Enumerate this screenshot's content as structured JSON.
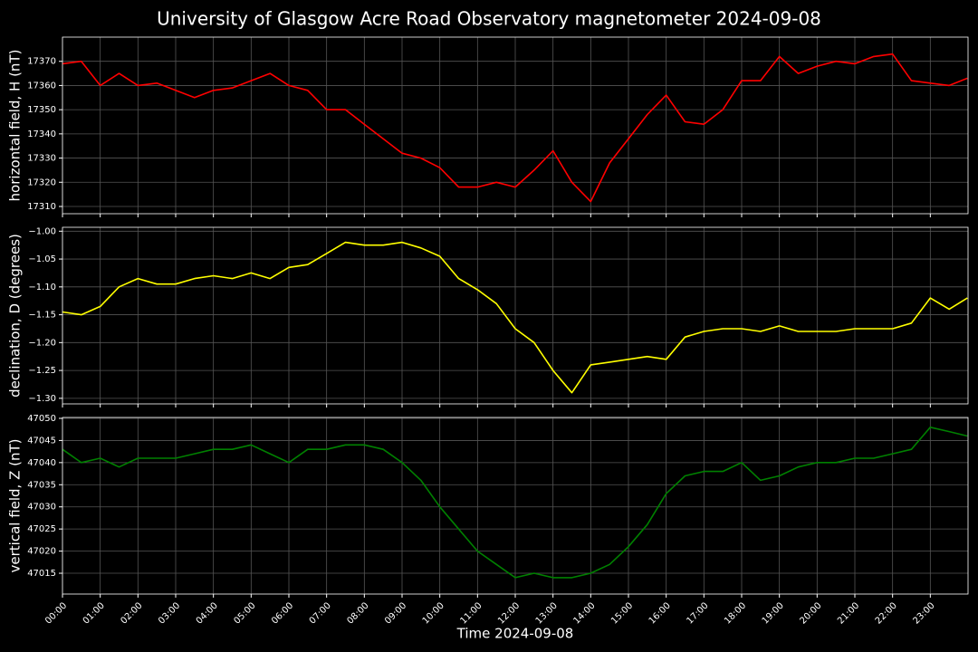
{
  "chart_data": [
    {
      "type": "line",
      "title": "University of Glasgow Acre Road Observatory magnetometer 2024-09-08",
      "ylabel": "horizontal field, H (nT)",
      "color": "#ff0000",
      "grid": true,
      "xlim": [
        "00:00",
        "24:00"
      ],
      "x": [
        "00:00",
        "00:30",
        "01:00",
        "01:30",
        "02:00",
        "02:30",
        "03:00",
        "03:30",
        "04:00",
        "04:30",
        "05:00",
        "05:30",
        "06:00",
        "06:30",
        "07:00",
        "07:30",
        "08:00",
        "08:30",
        "09:00",
        "09:30",
        "10:00",
        "10:30",
        "11:00",
        "11:30",
        "12:00",
        "12:30",
        "13:00",
        "13:30",
        "14:00",
        "14:30",
        "15:00",
        "15:30",
        "16:00",
        "16:30",
        "17:00",
        "17:30",
        "18:00",
        "18:30",
        "19:00",
        "19:30",
        "20:00",
        "20:30",
        "21:00",
        "21:30",
        "22:00",
        "22:30",
        "23:00",
        "23:30",
        "23:59"
      ],
      "values": [
        17369,
        17370,
        17360,
        17365,
        17360,
        17361,
        17358,
        17355,
        17358,
        17359,
        17362,
        17365,
        17360,
        17358,
        17350,
        17350,
        17344,
        17338,
        17332,
        17330,
        17326,
        17318,
        17318,
        17320,
        17318,
        17325,
        17333,
        17320,
        17312,
        17328,
        17338,
        17348,
        17356,
        17345,
        17344,
        17350,
        17362,
        17362,
        17372,
        17365,
        17368,
        17370,
        17369,
        17372,
        17373,
        17362,
        17361,
        17360,
        17363
      ],
      "ylim": [
        17307,
        17380
      ],
      "yticks": [
        17310,
        17320,
        17330,
        17340,
        17350,
        17360,
        17370
      ]
    },
    {
      "type": "line",
      "ylabel": "declination, D (degrees)",
      "color": "#ffff00",
      "grid": true,
      "xlim": [
        "00:00",
        "24:00"
      ],
      "x": [
        "00:00",
        "00:30",
        "01:00",
        "01:30",
        "02:00",
        "02:30",
        "03:00",
        "03:30",
        "04:00",
        "04:30",
        "05:00",
        "05:30",
        "06:00",
        "06:30",
        "07:00",
        "07:30",
        "08:00",
        "08:30",
        "09:00",
        "09:30",
        "10:00",
        "10:30",
        "11:00",
        "11:30",
        "12:00",
        "12:30",
        "13:00",
        "13:30",
        "14:00",
        "14:30",
        "15:00",
        "15:30",
        "16:00",
        "16:30",
        "17:00",
        "17:30",
        "18:00",
        "18:30",
        "19:00",
        "19:30",
        "20:00",
        "20:30",
        "21:00",
        "21:30",
        "22:00",
        "22:30",
        "23:00",
        "23:30",
        "23:59"
      ],
      "values": [
        -1.145,
        -1.15,
        -1.135,
        -1.1,
        -1.085,
        -1.095,
        -1.095,
        -1.085,
        -1.08,
        -1.085,
        -1.075,
        -1.085,
        -1.065,
        -1.06,
        -1.04,
        -1.02,
        -1.025,
        -1.025,
        -1.02,
        -1.03,
        -1.045,
        -1.085,
        -1.105,
        -1.13,
        -1.175,
        -1.2,
        -1.25,
        -1.29,
        -1.24,
        -1.235,
        -1.23,
        -1.225,
        -1.23,
        -1.19,
        -1.18,
        -1.175,
        -1.175,
        -1.18,
        -1.17,
        -1.18,
        -1.18,
        -1.18,
        -1.175,
        -1.175,
        -1.175,
        -1.165,
        -1.12,
        -1.14,
        -1.12
      ],
      "ylim": [
        -1.31,
        -0.993
      ],
      "yticks": [
        {
          "value": -1.3,
          "label": "−1.30"
        },
        {
          "value": -1.25,
          "label": "−1.25"
        },
        {
          "value": -1.2,
          "label": "−1.20"
        },
        {
          "value": -1.15,
          "label": "−1.15"
        },
        {
          "value": -1.1,
          "label": "−1.10"
        },
        {
          "value": -1.05,
          "label": "−1.05"
        },
        {
          "value": -1.0,
          "label": "−1.00"
        }
      ]
    },
    {
      "type": "line",
      "ylabel": "vertical field, Z (nT)",
      "xlabel": "Time 2024-09-08",
      "color": "#008000",
      "grid": true,
      "xlim": [
        "00:00",
        "24:00"
      ],
      "x": [
        "00:00",
        "00:30",
        "01:00",
        "01:30",
        "02:00",
        "02:30",
        "03:00",
        "03:30",
        "04:00",
        "04:30",
        "05:00",
        "05:30",
        "06:00",
        "06:30",
        "07:00",
        "07:30",
        "08:00",
        "08:30",
        "09:00",
        "09:30",
        "10:00",
        "10:30",
        "11:00",
        "11:30",
        "12:00",
        "12:30",
        "13:00",
        "13:30",
        "14:00",
        "14:30",
        "15:00",
        "15:30",
        "16:00",
        "16:30",
        "17:00",
        "17:30",
        "18:00",
        "18:30",
        "19:00",
        "19:30",
        "20:00",
        "20:30",
        "21:00",
        "21:30",
        "22:00",
        "22:30",
        "23:00",
        "23:30",
        "23:59"
      ],
      "values": [
        47043,
        47040,
        47041,
        47039,
        47041,
        47041,
        47041,
        47042,
        47043,
        47043,
        47044,
        47042,
        47040,
        47043,
        47043,
        47044,
        47044,
        47043,
        47040,
        47036,
        47030,
        47025,
        47020,
        47017,
        47014,
        47015,
        47014,
        47014,
        47015,
        47017,
        47021,
        47026,
        47033,
        47037,
        47038,
        47038,
        47040,
        47036,
        47037,
        47039,
        47040,
        47040,
        47041,
        47041,
        47042,
        47043,
        47048,
        47047,
        47046
      ],
      "ylim": [
        47010.3,
        47050.2
      ],
      "yticks": [
        47015,
        47020,
        47025,
        47030,
        47035,
        47040,
        47045,
        47050
      ],
      "xticks": [
        "00:00",
        "01:00",
        "02:00",
        "03:00",
        "04:00",
        "05:00",
        "06:00",
        "07:00",
        "08:00",
        "09:00",
        "10:00",
        "11:00",
        "12:00",
        "13:00",
        "14:00",
        "15:00",
        "16:00",
        "17:00",
        "18:00",
        "19:00",
        "20:00",
        "21:00",
        "22:00",
        "23:00"
      ]
    }
  ]
}
